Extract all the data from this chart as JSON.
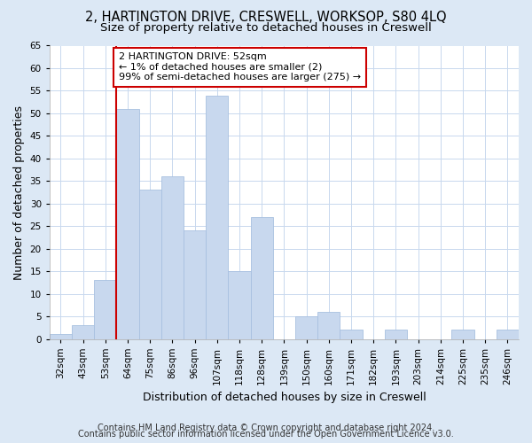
{
  "title_line1": "2, HARTINGTON DRIVE, CRESWELL, WORKSOP, S80 4LQ",
  "title_line2": "Size of property relative to detached houses in Creswell",
  "xlabel": "Distribution of detached houses by size in Creswell",
  "ylabel": "Number of detached properties",
  "categories": [
    "32sqm",
    "43sqm",
    "53sqm",
    "64sqm",
    "75sqm",
    "86sqm",
    "96sqm",
    "107sqm",
    "118sqm",
    "128sqm",
    "139sqm",
    "150sqm",
    "160sqm",
    "171sqm",
    "182sqm",
    "193sqm",
    "203sqm",
    "214sqm",
    "225sqm",
    "235sqm",
    "246sqm"
  ],
  "values": [
    1,
    3,
    13,
    51,
    33,
    36,
    24,
    54,
    15,
    27,
    0,
    5,
    6,
    2,
    0,
    2,
    0,
    0,
    2,
    0,
    2
  ],
  "bar_color": "#c8d8ee",
  "bar_edge_color": "#a8c0e0",
  "annotation_text_line1": "2 HARTINGTON DRIVE: 52sqm",
  "annotation_text_line2": "← 1% of detached houses are smaller (2)",
  "annotation_text_line3": "99% of semi-detached houses are larger (275) →",
  "annotation_box_facecolor": "#ffffff",
  "annotation_box_edgecolor": "#cc0000",
  "red_line_color": "#cc0000",
  "red_line_x": 2.5,
  "ylim": [
    0,
    65
  ],
  "yticks": [
    0,
    5,
    10,
    15,
    20,
    25,
    30,
    35,
    40,
    45,
    50,
    55,
    60,
    65
  ],
  "figure_facecolor": "#dce8f5",
  "axes_facecolor": "#ffffff",
  "grid_color": "#c8d8ee",
  "footer_line1": "Contains HM Land Registry data © Crown copyright and database right 2024.",
  "footer_line2": "Contains public sector information licensed under the Open Government Licence v3.0.",
  "title_fontsize": 10.5,
  "subtitle_fontsize": 9.5,
  "axis_label_fontsize": 9,
  "tick_fontsize": 7.5,
  "annotation_fontsize": 8,
  "footer_fontsize": 7
}
